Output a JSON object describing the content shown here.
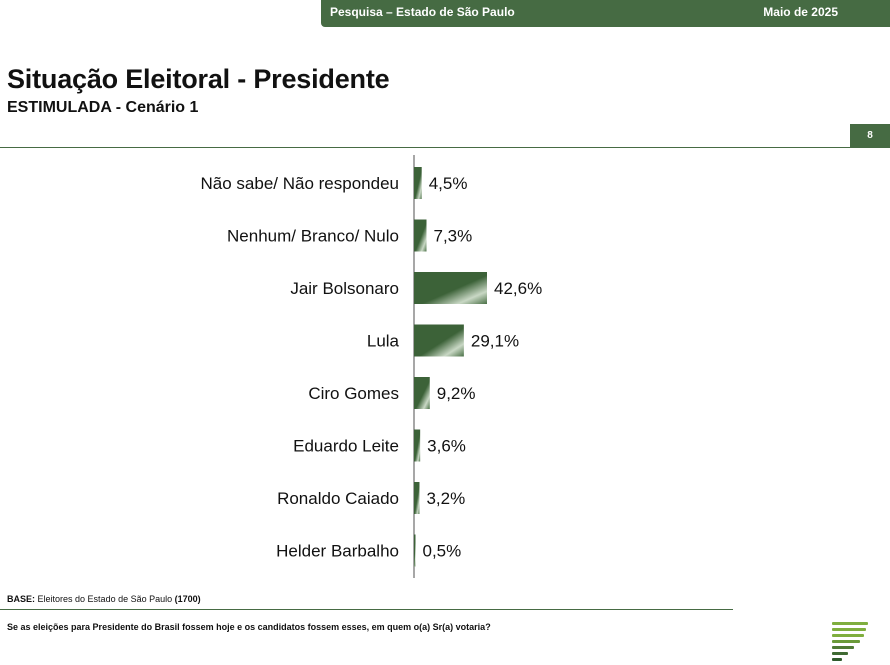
{
  "header": {
    "left_text": "Pesquisa – Estado de São Paulo",
    "right_text": "Maio de 2025"
  },
  "page_number": "8",
  "footer": {
    "base_label": "BASE:",
    "base_text": "Eleitores do Estado de São Paulo",
    "base_count": "(1700)",
    "question": "Se as eleições para Presidente do Brasil fossem hoje e os candidatos fossem esses, em quem o(a) Sr(a) votaria?"
  },
  "colors": {
    "brand_green": "#466b43",
    "bar_dark": "#3c6238",
    "logo_green": "#7fae3e"
  },
  "chart_data": {
    "type": "bar",
    "orientation": "horizontal",
    "title": "Situação Eleitoral - Presidente",
    "subtitle": "ESTIMULADA - Cenário 1",
    "categories": [
      "Não sabe/ Não respondeu",
      "Nenhum/ Branco/ Nulo",
      "Jair Bolsonaro",
      "Lula",
      "Ciro Gomes",
      "Eduardo Leite",
      "Ronaldo Caiado",
      "Helder Barbalho"
    ],
    "values": [
      4.5,
      7.3,
      42.6,
      29.1,
      9.2,
      3.6,
      3.2,
      0.5
    ],
    "labels": [
      "4,5%",
      "7,3%",
      "42,6%",
      "29,1%",
      "9,2%",
      "3,6%",
      "3,2%",
      "0,5%"
    ],
    "xlim": [
      0,
      100
    ],
    "grid": false,
    "legend": false
  }
}
